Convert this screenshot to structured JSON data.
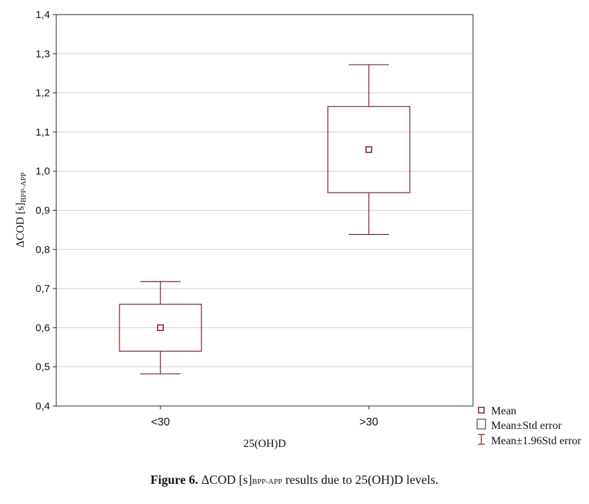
{
  "chart_data": {
    "type": "box",
    "categories": [
      "<30",
      ">30"
    ],
    "series": [
      {
        "name": "Mean",
        "values": [
          0.6,
          1.055
        ]
      },
      {
        "name": "Mean±Std error",
        "lower": [
          0.54,
          0.945
        ],
        "upper": [
          0.66,
          1.165
        ]
      },
      {
        "name": "Mean±1.96Std error",
        "lower": [
          0.482,
          0.838
        ],
        "upper": [
          0.718,
          1.272
        ]
      }
    ],
    "xlabel": "25(OH)D",
    "ylabel_main": "ΔCOD [s]",
    "ylabel_sub": "BPP-APP",
    "ylim": [
      0.4,
      1.4
    ],
    "yticks": [
      0.4,
      0.5,
      0.6,
      0.7,
      0.8,
      0.9,
      1.0,
      1.1,
      1.2,
      1.3,
      1.4
    ],
    "ytick_labels": [
      "0,4",
      "0,5",
      "0,6",
      "0,7",
      "0,8",
      "0,9",
      "1,0",
      "1,1",
      "1,2",
      "1,3",
      "1,4"
    ],
    "grid": true,
    "legend_position": "bottom-right",
    "legend": [
      "Mean",
      "Mean±Std error",
      "Mean±1.96Std error"
    ],
    "color": "#7a1a1a"
  },
  "caption": {
    "label": "Figure 6.",
    "text_before": " ΔCOD [s]",
    "sub": "BPP-APP",
    "text_after": " results due to 25(OH)D levels."
  }
}
